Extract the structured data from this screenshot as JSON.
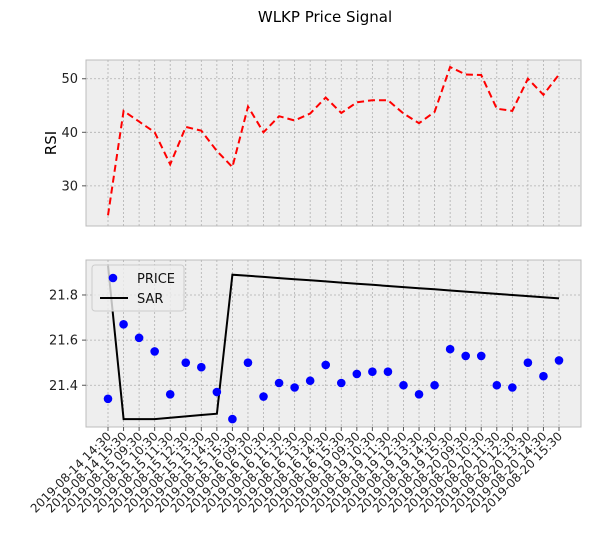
{
  "chart_data": [
    {
      "type": "line",
      "title": "WLKP Price Signal",
      "xlabel": "",
      "ylabel": "RSI",
      "ylim": [
        22.5,
        53.5
      ],
      "yticks": [
        30,
        40,
        50
      ],
      "grid": true,
      "series": [
        {
          "name": "RSI",
          "color": "#ff0000",
          "style": "dashed",
          "values": [
            24.5,
            44.0,
            42.0,
            40.0,
            34.0,
            41.0,
            40.3,
            36.5,
            33.5,
            44.8,
            40.0,
            43.0,
            42.2,
            43.5,
            46.5,
            43.6,
            45.6,
            46.0,
            46.0,
            43.5,
            41.7,
            43.8,
            52.2,
            50.8,
            50.7,
            44.4,
            44.0,
            50.0,
            47.0,
            50.8
          ]
        }
      ]
    },
    {
      "type": "scatter",
      "title": "",
      "xlabel": "",
      "ylabel": "",
      "ylim": [
        21.215,
        21.955
      ],
      "yticks": [
        21.4,
        21.6,
        21.8
      ],
      "grid": true,
      "legend": "top-left",
      "x": [
        "2019-08-14 14:30",
        "2019-08-14 15:30",
        "2019-08-15 09:30",
        "2019-08-15 10:30",
        "2019-08-15 11:30",
        "2019-08-15 12:30",
        "2019-08-15 13:30",
        "2019-08-15 14:30",
        "2019-08-15 15:30",
        "2019-08-16 09:30",
        "2019-08-16 10:30",
        "2019-08-16 11:30",
        "2019-08-16 12:30",
        "2019-08-16 13:30",
        "2019-08-16 14:30",
        "2019-08-16 15:30",
        "2019-08-19 09:30",
        "2019-08-19 10:30",
        "2019-08-19 11:30",
        "2019-08-19 12:30",
        "2019-08-19 13:30",
        "2019-08-19 14:30",
        "2019-08-19 15:30",
        "2019-08-20 09:30",
        "2019-08-20 10:30",
        "2019-08-20 11:30",
        "2019-08-20 12:30",
        "2019-08-20 13:30",
        "2019-08-20 14:30",
        "2019-08-20 15:30"
      ],
      "series": [
        {
          "name": "PRICE",
          "color": "#0000ff",
          "marker": "circle",
          "values": [
            21.34,
            21.67,
            21.61,
            21.55,
            21.36,
            21.5,
            21.48,
            21.37,
            21.25,
            21.5,
            21.35,
            21.41,
            21.39,
            21.42,
            21.49,
            21.41,
            21.45,
            21.46,
            21.46,
            21.4,
            21.36,
            21.4,
            21.56,
            21.53,
            21.53,
            21.4,
            21.39,
            21.5,
            21.44,
            21.51
          ]
        },
        {
          "name": "SAR",
          "color": "#000000",
          "style": "solid",
          "values": [
            21.93,
            21.25,
            21.25,
            21.25,
            21.256,
            21.262,
            21.268,
            21.274,
            21.89,
            21.885,
            21.88,
            21.875,
            21.87,
            21.865,
            21.86,
            21.855,
            21.85,
            21.845,
            21.84,
            21.835,
            21.83,
            21.825,
            21.82,
            21.815,
            21.81,
            21.805,
            21.8,
            21.795,
            21.79,
            21.785
          ]
        }
      ]
    }
  ]
}
